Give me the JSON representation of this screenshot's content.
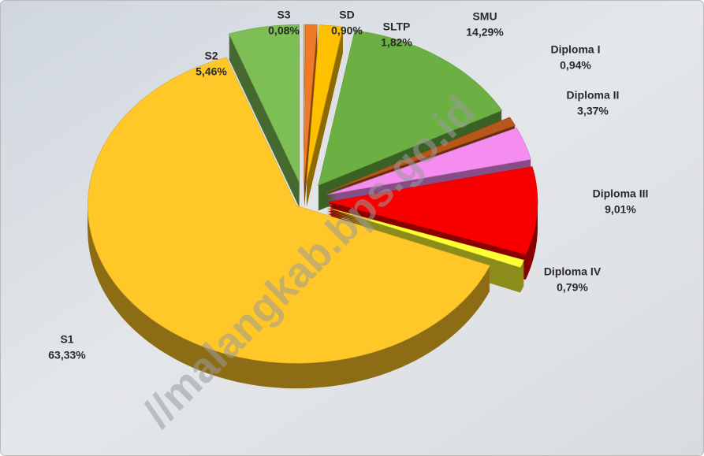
{
  "chart_data": {
    "type": "pie",
    "categories": [
      "S3",
      "SD",
      "SLTP",
      "SMU",
      "Diploma I",
      "Diploma II",
      "Diploma III",
      "Diploma IV",
      "S1",
      "S2"
    ],
    "values": [
      0.08,
      0.9,
      1.82,
      14.29,
      0.94,
      3.37,
      9.01,
      0.79,
      63.33,
      5.46
    ],
    "value_labels": [
      "0,08%",
      "0,90%",
      "1,82%",
      "14,29%",
      "0,94%",
      "3,37%",
      "9,01%",
      "0,79%",
      "63,33%",
      "5,46%"
    ],
    "colors": [
      "#f4a04a",
      "#f07a26",
      "#ffc000",
      "#6cb043",
      "#b8561c",
      "#f58cf0",
      "#f80000",
      "#ffff33",
      "#ffc727",
      "#7dbe55"
    ],
    "watermark": "//malangkab.bps.go.id"
  }
}
